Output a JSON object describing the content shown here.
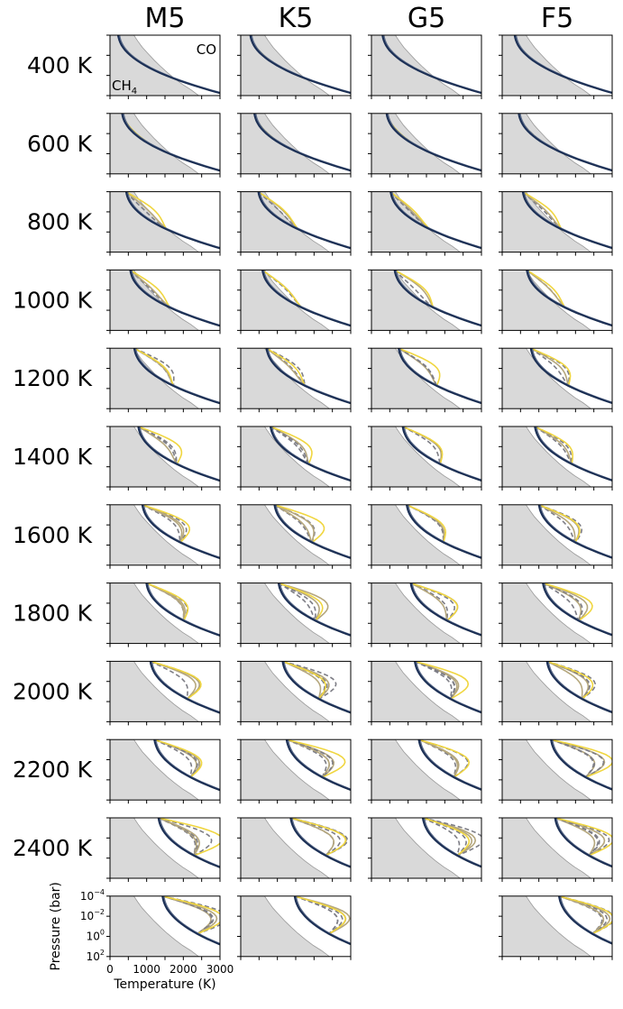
{
  "chart_data": {
    "type": "line",
    "column_titles": [
      "M5",
      "K5",
      "G5",
      "F5"
    ],
    "row_labels": [
      "400 K",
      "600 K",
      "800 K",
      "1000 K",
      "1200 K",
      "1400 K",
      "1600 K",
      "1800 K",
      "2000 K",
      "2200 K",
      "2400 K",
      ""
    ],
    "xlabel": "Temperature (K)",
    "ylabel": "Pressure (bar)",
    "x_ticks": [
      "0",
      "1000",
      "2000",
      "3000"
    ],
    "xlim": [
      0,
      3000
    ],
    "y_ticks": [
      {
        "base": "10",
        "exp": "−4"
      },
      {
        "base": "10",
        "exp": "−2"
      },
      {
        "base": "10",
        "exp": "0"
      },
      {
        "base": "10",
        "exp": "2"
      }
    ],
    "ylim_log10": [
      -4,
      2
    ],
    "y_inverted": true,
    "y_scale": "log",
    "annotations": {
      "co_label": "CO",
      "ch4_label": "CH",
      "ch4_subscript": "4"
    },
    "shaded_region": "CH4-dominated (left of CH4/CO equal-abundance curve)",
    "colors": {
      "deep": "#1b2f55",
      "mid": "#7d7d85",
      "khaki": "#b5a77d",
      "yellow": "#f0d640",
      "shade": "#d9d9d9"
    },
    "panels_present": [
      [
        true,
        true,
        true,
        true
      ],
      [
        true,
        true,
        true,
        true
      ],
      [
        true,
        true,
        true,
        true
      ],
      [
        true,
        true,
        true,
        true
      ],
      [
        true,
        true,
        true,
        true
      ],
      [
        true,
        true,
        true,
        true
      ],
      [
        true,
        true,
        true,
        true
      ],
      [
        true,
        true,
        true,
        true
      ],
      [
        true,
        true,
        true,
        true
      ],
      [
        true,
        true,
        true,
        true
      ],
      [
        true,
        true,
        true,
        true
      ],
      [
        true,
        true,
        false,
        true
      ]
    ]
  }
}
